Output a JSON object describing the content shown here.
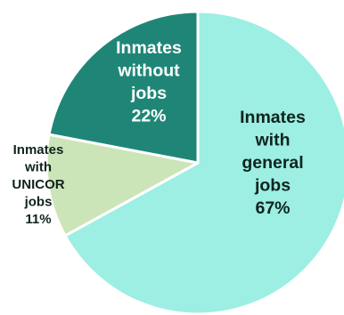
{
  "chart_data": {
    "type": "pie",
    "title": "",
    "slices": [
      {
        "label_lines": [
          "Inmates",
          "with",
          "general",
          "jobs"
        ],
        "pct_text": "67%",
        "value": 67,
        "color": "#9cefe2",
        "text_color": "#10231f"
      },
      {
        "label_lines": [
          "Inmates",
          "with",
          "UNICOR",
          "jobs"
        ],
        "pct_text": "11%",
        "value": 11,
        "color": "#cce5b8",
        "text_color": "#10231f"
      },
      {
        "label_lines": [
          "Inmates",
          "without",
          "jobs"
        ],
        "pct_text": "22%",
        "value": 22,
        "color": "#1f8677",
        "text_color": "#ffffff"
      }
    ],
    "start_angle_deg": 0,
    "direction": "clockwise",
    "legend": "none"
  }
}
